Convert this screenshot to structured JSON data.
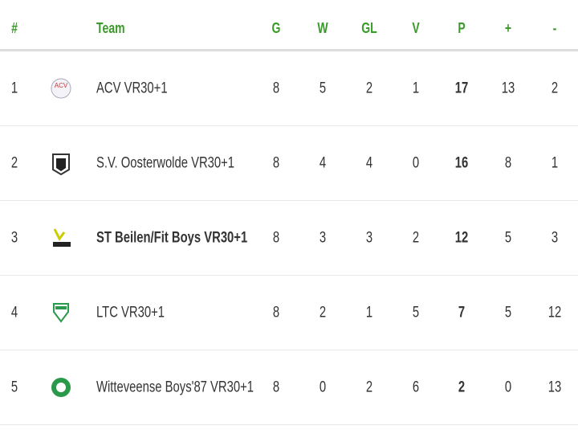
{
  "table": {
    "header": {
      "rank": "#",
      "team": "Team",
      "stats": [
        "G",
        "W",
        "GL",
        "V",
        "P",
        "+",
        "-"
      ]
    },
    "rows": [
      {
        "rank": 1,
        "team": "ACV VR30+1",
        "stats": [
          8,
          5,
          2,
          1,
          17,
          13,
          2
        ]
      },
      {
        "rank": 2,
        "team": "S.V. Oosterwolde VR30+1",
        "stats": [
          8,
          4,
          4,
          0,
          16,
          8,
          1
        ]
      },
      {
        "rank": 3,
        "team": "ST Beilen/Fit Boys VR30+1",
        "stats": [
          8,
          3,
          3,
          2,
          12,
          5,
          3
        ]
      },
      {
        "rank": 4,
        "team": "LTC VR30+1",
        "stats": [
          8,
          2,
          1,
          5,
          7,
          5,
          12
        ]
      },
      {
        "rank": 5,
        "team": "Witteveense Boys'87 VR30+1",
        "stats": [
          8,
          0,
          2,
          6,
          2,
          0,
          13
        ]
      }
    ]
  }
}
